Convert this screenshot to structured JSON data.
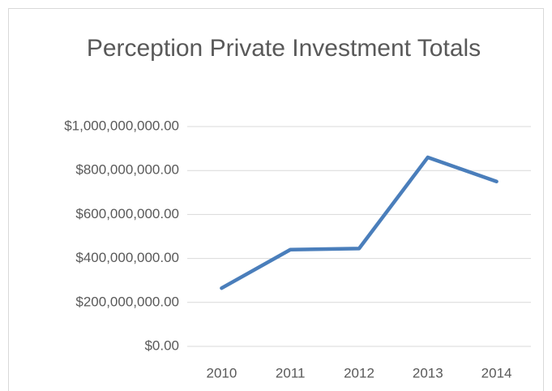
{
  "chart_data": {
    "type": "line",
    "title": "Perception Private Investment Totals",
    "categories": [
      "2010",
      "2011",
      "2012",
      "2013",
      "2014"
    ],
    "series": [
      {
        "name": "Perception Private Investment Totals",
        "color": "#4a7ebb",
        "values": [
          265000000,
          440000000,
          445000000,
          860000000,
          750000000
        ]
      }
    ],
    "ylim": [
      0,
      1000000000
    ],
    "yticks": [
      {
        "value": 0,
        "label": "$0.00"
      },
      {
        "value": 200000000,
        "label": "$200,000,000.00"
      },
      {
        "value": 400000000,
        "label": "$400,000,000.00"
      },
      {
        "value": 600000000,
        "label": "$600,000,000.00"
      },
      {
        "value": 800000000,
        "label": "$800,000,000.00"
      },
      {
        "value": 1000000000,
        "label": "$1,000,000,000.00"
      }
    ],
    "grid": true
  }
}
